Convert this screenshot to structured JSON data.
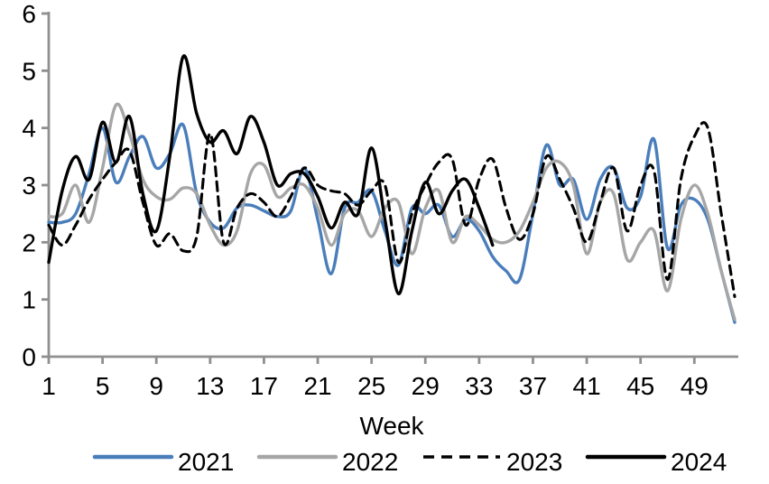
{
  "chart": {
    "x_axis_title": "Week",
    "axis_color": "#8f8f8f",
    "text_color": "#000000",
    "background": "#ffffff"
  },
  "chart_data": {
    "type": "line",
    "title": "",
    "x_label": "Week",
    "y_label": "",
    "ylim": [
      0,
      6
    ],
    "xlim": [
      1,
      52
    ],
    "grid": false,
    "legend_position": "bottom",
    "y_ticks": [
      0,
      1,
      2,
      3,
      4,
      5,
      6
    ],
    "x_ticks": [
      1,
      5,
      9,
      13,
      17,
      21,
      25,
      29,
      33,
      37,
      41,
      45,
      49
    ],
    "x": [
      1,
      2,
      3,
      4,
      5,
      6,
      7,
      8,
      9,
      10,
      11,
      12,
      13,
      14,
      15,
      16,
      17,
      18,
      19,
      20,
      21,
      22,
      23,
      24,
      25,
      26,
      27,
      28,
      29,
      30,
      31,
      32,
      33,
      34,
      35,
      36,
      37,
      38,
      39,
      40,
      41,
      42,
      43,
      44,
      45,
      46,
      47,
      48,
      49,
      50,
      51,
      52
    ],
    "series": [
      {
        "name": "2021",
        "color": "#4a7ebb",
        "dash": "solid",
        "values": [
          2.35,
          2.35,
          2.5,
          3.2,
          4.0,
          3.05,
          3.5,
          3.85,
          3.3,
          3.55,
          4.05,
          2.85,
          2.35,
          2.25,
          2.6,
          2.65,
          2.55,
          2.45,
          2.55,
          3.3,
          2.4,
          1.45,
          2.6,
          2.7,
          2.9,
          2.2,
          1.6,
          2.6,
          2.5,
          2.65,
          2.1,
          2.4,
          2.2,
          1.75,
          1.5,
          1.35,
          2.5,
          3.7,
          3.0,
          3.1,
          2.4,
          3.1,
          3.3,
          2.6,
          2.8,
          3.8,
          1.9,
          2.65,
          2.75,
          2.4,
          1.5,
          0.6
        ]
      },
      {
        "name": "2022",
        "color": "#a6a6a6",
        "dash": "solid",
        "values": [
          2.45,
          2.5,
          3.0,
          2.35,
          3.3,
          4.4,
          3.9,
          3.1,
          2.8,
          2.75,
          2.95,
          2.85,
          2.3,
          1.95,
          2.2,
          3.2,
          3.35,
          2.8,
          2.95,
          3.0,
          2.6,
          1.95,
          2.5,
          2.55,
          2.1,
          2.6,
          2.7,
          1.8,
          2.6,
          2.9,
          2.0,
          2.45,
          2.3,
          2.05,
          2.0,
          2.2,
          2.7,
          3.3,
          3.4,
          3.0,
          1.8,
          2.7,
          2.85,
          1.7,
          2.0,
          2.2,
          1.15,
          2.4,
          3.0,
          2.5,
          1.5,
          0.65
        ]
      },
      {
        "name": "2023",
        "color": "#000000",
        "dash": "dashed",
        "values": [
          2.3,
          1.95,
          2.3,
          2.75,
          3.1,
          3.4,
          3.6,
          2.7,
          1.95,
          2.15,
          1.85,
          2.1,
          3.9,
          2.0,
          2.6,
          2.85,
          2.7,
          2.45,
          2.8,
          3.3,
          3.0,
          2.9,
          2.85,
          2.65,
          2.9,
          3.0,
          1.65,
          2.5,
          3.0,
          3.4,
          3.45,
          2.3,
          3.1,
          3.45,
          2.6,
          2.05,
          2.5,
          3.5,
          3.1,
          2.6,
          2.0,
          2.7,
          3.3,
          2.2,
          3.0,
          3.25,
          1.35,
          3.1,
          3.85,
          4.0,
          2.5,
          1.05
        ]
      },
      {
        "name": "2024",
        "color": "#000000",
        "dash": "solid",
        "values": [
          1.65,
          2.9,
          3.5,
          3.1,
          4.1,
          3.4,
          4.2,
          2.85,
          2.2,
          3.5,
          5.25,
          4.25,
          3.75,
          3.95,
          3.55,
          4.2,
          3.75,
          3.0,
          3.2,
          3.2,
          2.8,
          2.25,
          2.7,
          2.5,
          3.65,
          2.4,
          1.1,
          2.2,
          3.05,
          2.5,
          2.9,
          3.1,
          2.6,
          1.95,
          null,
          null,
          null,
          null,
          null,
          null,
          null,
          null,
          null,
          null,
          null,
          null,
          null,
          null,
          null,
          null,
          null,
          null
        ]
      }
    ]
  }
}
